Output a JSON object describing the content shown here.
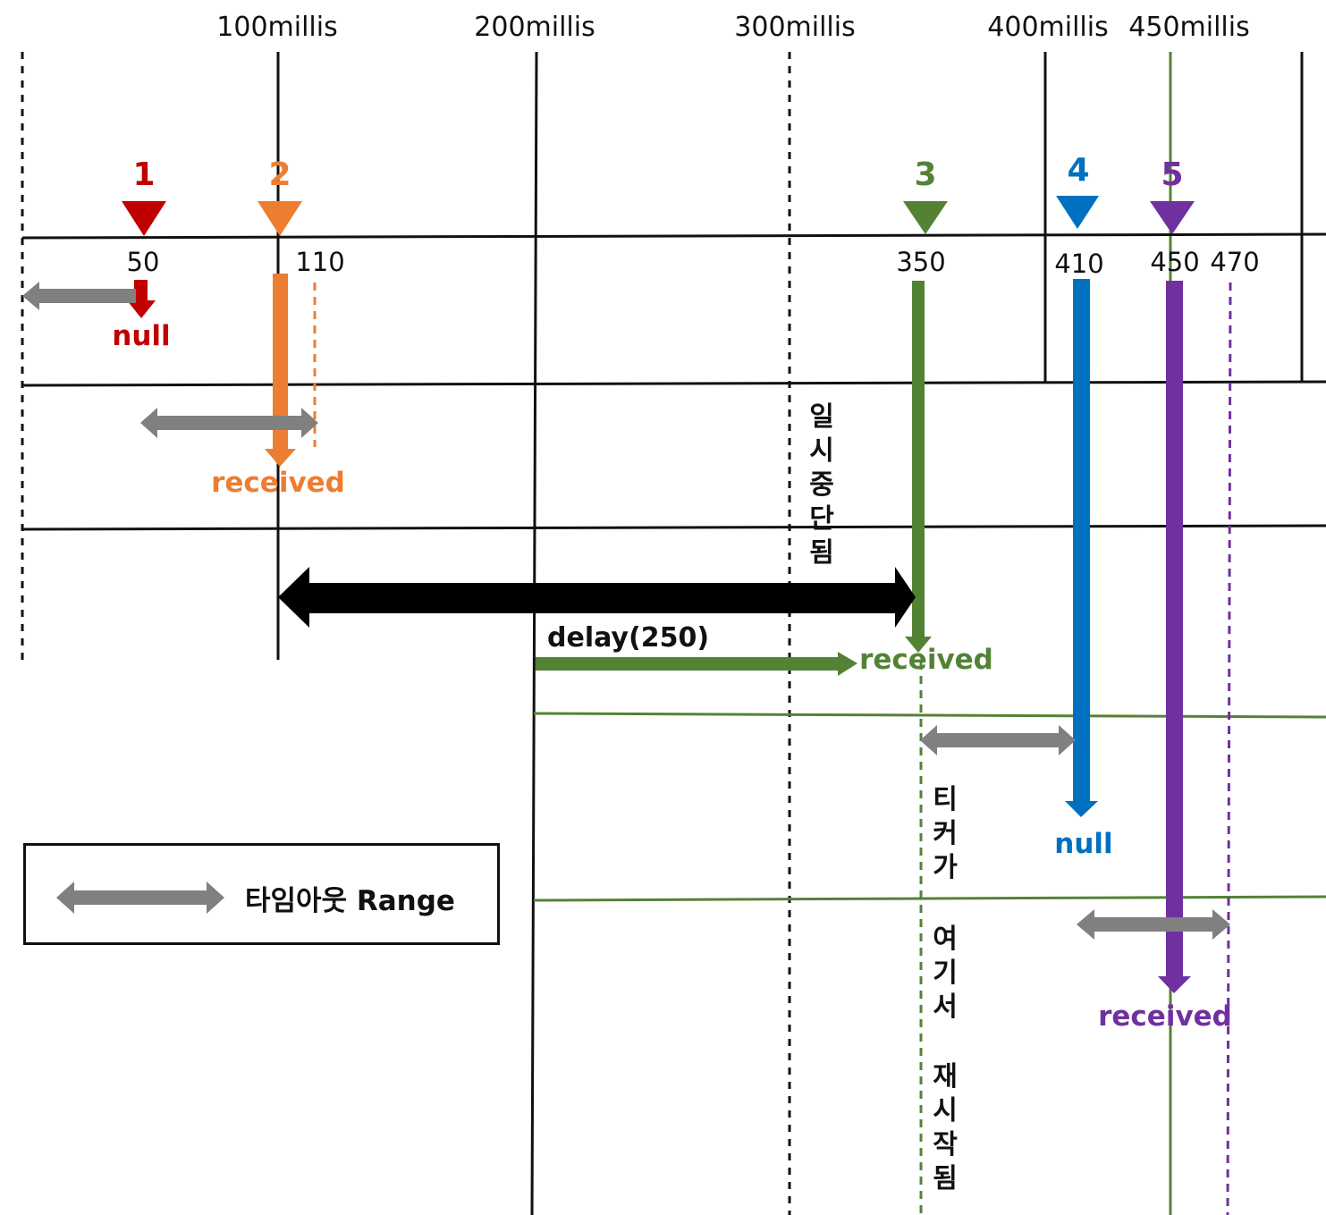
{
  "axis_ticks": [
    "100millis",
    "200millis",
    "300millis",
    "400millis",
    "450millis"
  ],
  "value_labels": [
    "50",
    "110",
    "350",
    "410",
    "450",
    "470"
  ],
  "events": [
    {
      "number": "1",
      "color": "#c00000",
      "result": "null"
    },
    {
      "number": "2",
      "color": "#ed7d31",
      "result": "received"
    },
    {
      "number": "3",
      "color": "#548235",
      "result": "received"
    },
    {
      "number": "4",
      "color": "#0070c0",
      "result": "null"
    },
    {
      "number": "5",
      "color": "#7030a0",
      "result": "received"
    }
  ],
  "delay_label": "delay(250)",
  "pause_note": [
    "일",
    "시",
    "중",
    "단",
    "됨"
  ],
  "restart_note": [
    "티",
    "커",
    "가",
    "",
    "여",
    "기",
    "서",
    "",
    "재",
    "시",
    "작",
    "됨"
  ],
  "timeout_color": "#808080",
  "legend": {
    "label": "타임아웃 Range"
  }
}
